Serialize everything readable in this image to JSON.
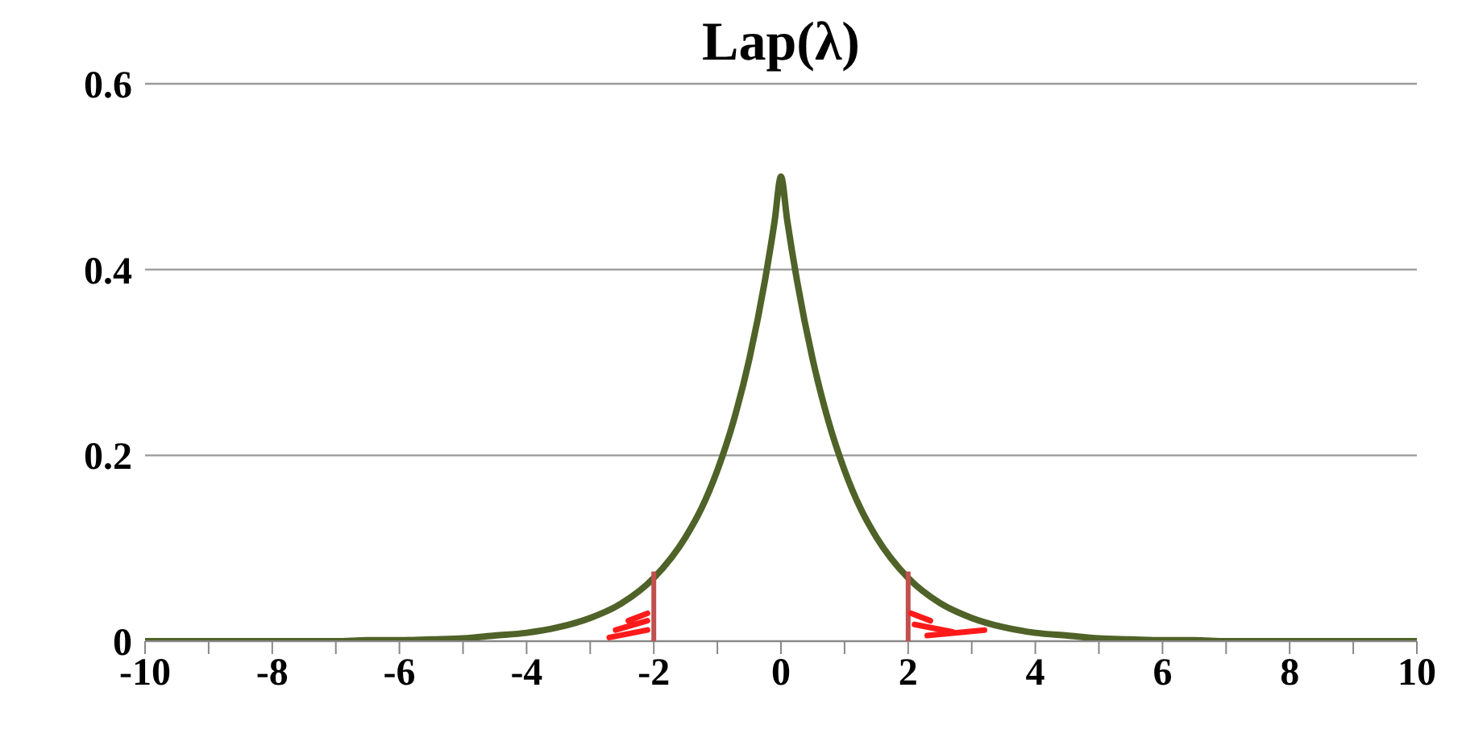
{
  "chart_data": {
    "type": "line",
    "title": "Lap(λ)",
    "x": [
      -10,
      -9.5,
      -9,
      -8.5,
      -8,
      -7.5,
      -7,
      -6.5,
      -6,
      -5.5,
      -5,
      -4.5,
      -4,
      -3.5,
      -3,
      -2.5,
      -2,
      -1.5,
      -1.25,
      -1,
      -0.75,
      -0.5,
      -0.25,
      -0.1,
      0,
      0.1,
      0.25,
      0.5,
      0.75,
      1,
      1.25,
      1.5,
      2,
      2.5,
      3,
      3.5,
      4,
      4.5,
      5,
      5.5,
      6,
      6.5,
      7,
      7.5,
      8,
      8.5,
      9,
      9.5,
      10
    ],
    "series": [
      {
        "color": "#4f6228",
        "values": [
          0,
          0,
          0,
          0,
          0,
          0,
          0,
          0.001,
          0.001,
          0.002,
          0.003,
          0.006,
          0.009,
          0.015,
          0.025,
          0.041,
          0.068,
          0.112,
          0.143,
          0.184,
          0.236,
          0.303,
          0.389,
          0.452,
          0.5,
          0.452,
          0.389,
          0.303,
          0.236,
          0.184,
          0.143,
          0.112,
          0.068,
          0.041,
          0.025,
          0.015,
          0.009,
          0.006,
          0.003,
          0.002,
          0.001,
          0.001,
          0,
          0,
          0,
          0,
          0,
          0,
          0
        ]
      }
    ],
    "ref_lines": [
      {
        "axis": "x",
        "value": -2,
        "color": "#c0504d"
      },
      {
        "axis": "x",
        "value": 2,
        "color": "#c0504d"
      }
    ],
    "xlim": [
      -10,
      10
    ],
    "xticks": [
      -10,
      {
        "value": -9,
        "label": null
      },
      -8,
      {
        "value": -7,
        "label": null
      },
      -6,
      {
        "value": -5,
        "label": null
      },
      -4,
      {
        "value": -3,
        "label": null
      },
      -2,
      {
        "value": -1,
        "label": null
      },
      0,
      {
        "value": 1,
        "label": null
      },
      2,
      {
        "value": 3,
        "label": null
      },
      4,
      {
        "value": 5,
        "label": null
      },
      6,
      {
        "value": 7,
        "label": null
      },
      8,
      {
        "value": 9,
        "label": null
      },
      10
    ],
    "ylim": [
      0,
      0.6
    ],
    "yticks": [
      0,
      0.2,
      0.4,
      0.6
    ],
    "grid": "y",
    "marker": "none",
    "line_style": "solid"
  }
}
